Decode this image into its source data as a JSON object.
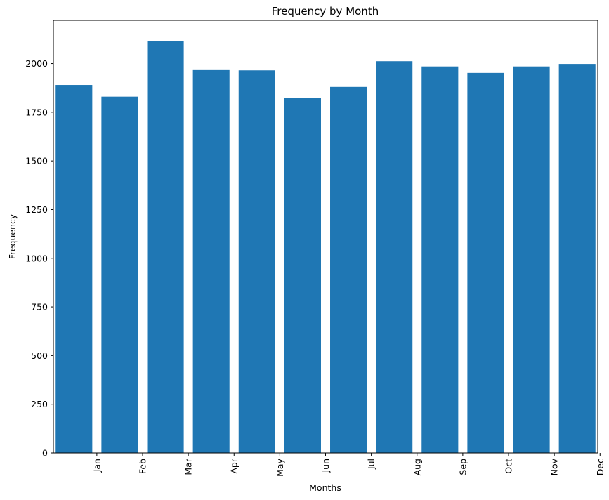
{
  "chart_data": {
    "type": "bar",
    "title": "Frequency by Month",
    "xlabel": "Months",
    "ylabel": "Frequency",
    "categories": [
      "Jan",
      "Feb",
      "Mar",
      "Apr",
      "May",
      "Jun",
      "Jul",
      "Aug",
      "Sep",
      "Oct",
      "Nov",
      "Dec"
    ],
    "values": [
      1890,
      1830,
      2115,
      1970,
      1965,
      1822,
      1880,
      2012,
      1985,
      1952,
      1985,
      1998
    ],
    "ylim": [
      0,
      2222
    ],
    "yticks": [
      0,
      250,
      500,
      750,
      1000,
      1250,
      1500,
      1750,
      2000
    ],
    "bar_color": "#1f77b4",
    "grid": false,
    "legend": "none",
    "xtick_rotation": "vertical"
  }
}
